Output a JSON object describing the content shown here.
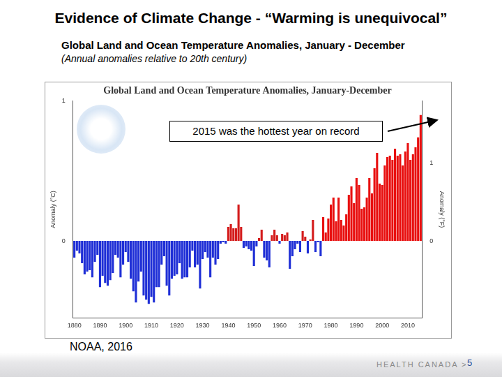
{
  "header": {
    "title": "Evidence of Climate Change - “Warming is unequivocal”",
    "subtitle": "Global Land and Ocean Temperature Anomalies, January - December",
    "subtitle_note": "(Annual anomalies relative to 20th century)"
  },
  "source": "NOAA, 2016",
  "footer": {
    "organization": "HEALTH CANADA >",
    "page": 5
  },
  "chart_data": {
    "type": "bar",
    "title": "Global Land and Ocean Temperature Anomalies, January-December",
    "annotation": "2015 was the hottest year on record",
    "ylabel": "Anomaly (°C)",
    "y2label": "Anomaly (°F)",
    "categories": [
      "1880",
      null,
      null,
      null,
      null,
      null,
      null,
      null,
      null,
      null,
      "1890",
      null,
      null,
      null,
      null,
      null,
      null,
      null,
      null,
      null,
      "1900",
      null,
      null,
      null,
      null,
      null,
      null,
      null,
      null,
      null,
      "1910",
      null,
      null,
      null,
      null,
      null,
      null,
      null,
      null,
      null,
      "1920",
      null,
      null,
      null,
      null,
      null,
      null,
      null,
      null,
      null,
      "1930",
      null,
      null,
      null,
      null,
      null,
      null,
      null,
      null,
      null,
      "1940",
      null,
      null,
      null,
      null,
      null,
      null,
      null,
      null,
      null,
      "1950",
      null,
      null,
      null,
      null,
      null,
      null,
      null,
      null,
      null,
      "1960",
      null,
      null,
      null,
      null,
      null,
      null,
      null,
      null,
      null,
      "1970",
      null,
      null,
      null,
      null,
      null,
      null,
      null,
      null,
      null,
      "1980",
      null,
      null,
      null,
      null,
      null,
      null,
      null,
      null,
      null,
      "1990",
      null,
      null,
      null,
      null,
      null,
      null,
      null,
      null,
      null,
      "2000",
      null,
      null,
      null,
      null,
      null,
      null,
      null,
      null,
      null,
      "2010",
      null,
      null,
      null,
      null,
      null
    ],
    "values": [
      -0.12,
      -0.07,
      -0.09,
      -0.16,
      -0.24,
      -0.22,
      -0.21,
      -0.26,
      -0.15,
      -0.1,
      -0.33,
      -0.25,
      -0.3,
      -0.32,
      -0.28,
      -0.23,
      -0.1,
      -0.12,
      -0.26,
      -0.17,
      -0.08,
      -0.15,
      -0.27,
      -0.36,
      -0.44,
      -0.29,
      -0.22,
      -0.39,
      -0.42,
      -0.45,
      -0.4,
      -0.44,
      -0.33,
      -0.33,
      -0.17,
      -0.11,
      -0.32,
      -0.39,
      -0.27,
      -0.25,
      -0.24,
      -0.16,
      -0.27,
      -0.26,
      -0.26,
      -0.19,
      -0.07,
      -0.19,
      -0.17,
      -0.34,
      -0.13,
      -0.08,
      -0.12,
      -0.26,
      -0.12,
      -0.17,
      -0.13,
      -0.02,
      -0.01,
      -0.02,
      0.1,
      0.12,
      0.09,
      0.09,
      0.26,
      0.1,
      -0.05,
      -0.04,
      -0.06,
      -0.07,
      -0.18,
      -0.04,
      0.02,
      0.08,
      -0.12,
      -0.14,
      -0.19,
      0.04,
      0.08,
      0.04,
      -0.02,
      0.05,
      0.04,
      0.06,
      -0.2,
      -0.11,
      -0.06,
      -0.02,
      -0.08,
      0.07,
      0.03,
      -0.09,
      0.01,
      0.15,
      -0.08,
      -0.01,
      -0.11,
      0.17,
      0.06,
      0.16,
      0.26,
      0.31,
      0.14,
      0.31,
      0.15,
      0.11,
      0.19,
      0.33,
      0.39,
      0.27,
      0.45,
      0.4,
      0.23,
      0.24,
      0.31,
      0.45,
      0.34,
      0.52,
      0.63,
      0.41,
      0.4,
      0.54,
      0.6,
      0.61,
      0.58,
      0.66,
      0.61,
      0.62,
      0.54,
      0.64,
      0.7,
      0.58,
      0.62,
      0.67,
      0.74,
      0.9
    ],
    "colors": [
      "#1f2fd6",
      "#1f2fd6",
      "#1f2fd6",
      "#1f2fd6",
      "#1f2fd6",
      "#1f2fd6",
      "#1f2fd6",
      "#1f2fd6",
      "#1f2fd6",
      "#1f2fd6",
      "#1f2fd6",
      "#1f2fd6",
      "#1f2fd6",
      "#1f2fd6",
      "#1f2fd6",
      "#1f2fd6",
      "#1f2fd6",
      "#1f2fd6",
      "#1f2fd6",
      "#1f2fd6",
      "#1f2fd6",
      "#1f2fd6",
      "#1f2fd6",
      "#1f2fd6",
      "#1f2fd6",
      "#1f2fd6",
      "#1f2fd6",
      "#1f2fd6",
      "#1f2fd6",
      "#1f2fd6",
      "#1f2fd6",
      "#1f2fd6",
      "#1f2fd6",
      "#1f2fd6",
      "#1f2fd6",
      "#1f2fd6",
      "#1f2fd6",
      "#1f2fd6",
      "#1f2fd6",
      "#1f2fd6",
      "#1f2fd6",
      "#1f2fd6",
      "#1f2fd6",
      "#1f2fd6",
      "#1f2fd6",
      "#1f2fd6",
      "#1f2fd6",
      "#1f2fd6",
      "#1f2fd6",
      "#1f2fd6",
      "#1f2fd6",
      "#1f2fd6",
      "#1f2fd6",
      "#1f2fd6",
      "#1f2fd6",
      "#1f2fd6",
      "#1f2fd6",
      "#1f2fd6",
      "#1f2fd6",
      "#1f2fd6",
      "#d41c1c",
      "#d41c1c",
      "#d41c1c",
      "#d41c1c",
      "#d41c1c",
      "#d41c1c",
      "#1f2fd6",
      "#1f2fd6",
      "#1f2fd6",
      "#1f2fd6",
      "#1f2fd6",
      "#1f2fd6",
      "#d41c1c",
      "#d41c1c",
      "#1f2fd6",
      "#1f2fd6",
      "#1f2fd6",
      "#d41c1c",
      "#d41c1c",
      "#d41c1c",
      "#1f2fd6",
      "#d41c1c",
      "#d41c1c",
      "#d41c1c",
      "#1f2fd6",
      "#1f2fd6",
      "#1f2fd6",
      "#1f2fd6",
      "#1f2fd6",
      "#d41c1c",
      "#d41c1c",
      "#1f2fd6",
      "#d41c1c",
      "#d41c1c",
      "#1f2fd6",
      "#1f2fd6",
      "#1f2fd6",
      "#e81010",
      "#e81010",
      "#e81010",
      "#e81010",
      "#e81010",
      "#e81010",
      "#e81010",
      "#e81010",
      "#e81010",
      "#e81010",
      "#e81010",
      "#e81010",
      "#e81010",
      "#e81010",
      "#e81010",
      "#e81010",
      "#e81010",
      "#e81010",
      "#e81010",
      "#e81010",
      "#e81010",
      "#e81010",
      "#e81010",
      "#e81010",
      "#e81010",
      "#e81010",
      "#e81010",
      "#e81010",
      "#e81010",
      "#e81010",
      "#e81010",
      "#e81010",
      "#e81010",
      "#e81010",
      "#e81010",
      "#e81010",
      "#e81010",
      "#e81010",
      "#e81010"
    ],
    "ylim": [
      -0.55,
      1
    ],
    "yticks": [
      0,
      1
    ],
    "y2lim": [
      -0.99,
      1.8
    ],
    "y2ticks": [
      0,
      1
    ],
    "grid": false
  }
}
